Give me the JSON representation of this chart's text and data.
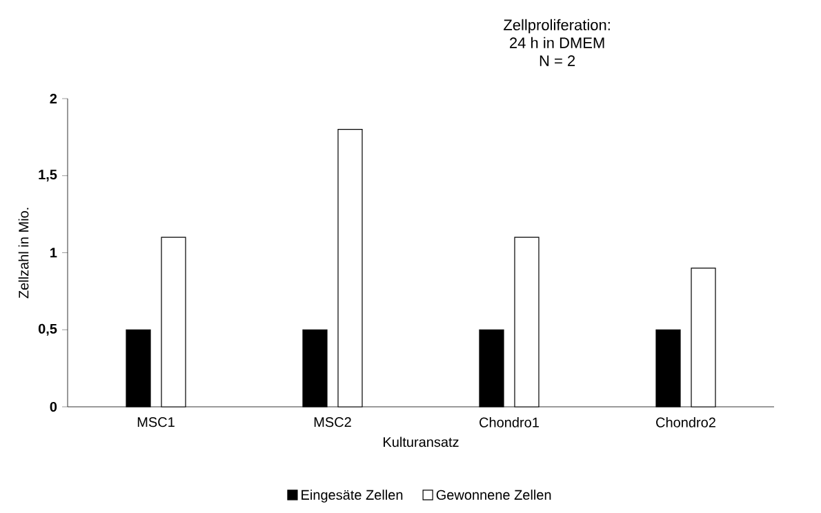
{
  "chart_data": {
    "type": "bar",
    "title": "Zellproliferation:",
    "subtitle": "24 h in DMEM",
    "annotations": [
      "N = 2"
    ],
    "xlabel": "Kulturansatz",
    "ylabel": "Zellzahl in Mio.",
    "categories": [
      "MSC1",
      "MSC2",
      "Chondro1",
      "Chondro2"
    ],
    "series": [
      {
        "name": "Eingesäte Zellen",
        "color": "#000000",
        "values": [
          0.5,
          0.5,
          0.5,
          0.5
        ]
      },
      {
        "name": "Gewonnene Zellen",
        "color": "#ffffff",
        "values": [
          1.1,
          1.8,
          1.1,
          0.9
        ]
      }
    ],
    "ylim": [
      0,
      2
    ],
    "yticks": [
      0,
      {
        "value": 0.5,
        "label": "0,5"
      },
      1,
      {
        "value": 1.5,
        "label": "1,5"
      },
      2
    ],
    "legend": "bottom"
  }
}
